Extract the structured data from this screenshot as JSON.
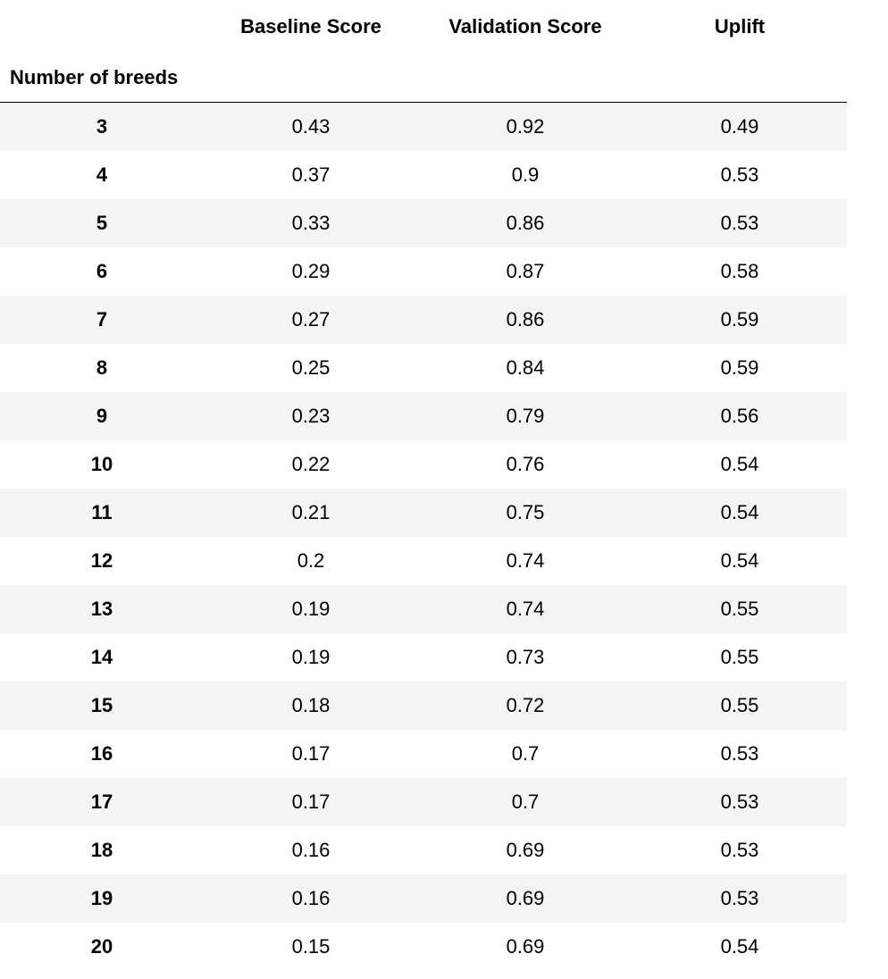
{
  "table": {
    "columns": [
      "Baseline Score",
      "Validation Score",
      "Uplift"
    ],
    "index_name": "Number of breeds",
    "rows": [
      {
        "index": "3",
        "values": [
          "0.43",
          "0.92",
          "0.49"
        ]
      },
      {
        "index": "4",
        "values": [
          "0.37",
          "0.9",
          "0.53"
        ]
      },
      {
        "index": "5",
        "values": [
          "0.33",
          "0.86",
          "0.53"
        ]
      },
      {
        "index": "6",
        "values": [
          "0.29",
          "0.87",
          "0.58"
        ]
      },
      {
        "index": "7",
        "values": [
          "0.27",
          "0.86",
          "0.59"
        ]
      },
      {
        "index": "8",
        "values": [
          "0.25",
          "0.84",
          "0.59"
        ]
      },
      {
        "index": "9",
        "values": [
          "0.23",
          "0.79",
          "0.56"
        ]
      },
      {
        "index": "10",
        "values": [
          "0.22",
          "0.76",
          "0.54"
        ]
      },
      {
        "index": "11",
        "values": [
          "0.21",
          "0.75",
          "0.54"
        ]
      },
      {
        "index": "12",
        "values": [
          "0.2",
          "0.74",
          "0.54"
        ]
      },
      {
        "index": "13",
        "values": [
          "0.19",
          "0.74",
          "0.55"
        ]
      },
      {
        "index": "14",
        "values": [
          "0.19",
          "0.73",
          "0.55"
        ]
      },
      {
        "index": "15",
        "values": [
          "0.18",
          "0.72",
          "0.55"
        ]
      },
      {
        "index": "16",
        "values": [
          "0.17",
          "0.7",
          "0.53"
        ]
      },
      {
        "index": "17",
        "values": [
          "0.17",
          "0.7",
          "0.53"
        ]
      },
      {
        "index": "18",
        "values": [
          "0.16",
          "0.69",
          "0.53"
        ]
      },
      {
        "index": "19",
        "values": [
          "0.16",
          "0.69",
          "0.53"
        ]
      },
      {
        "index": "20",
        "values": [
          "0.15",
          "0.69",
          "0.54"
        ]
      }
    ]
  },
  "colors": {
    "row_stripe": "#f5f5f5",
    "header_rule": "#000000",
    "text": "#000000"
  }
}
